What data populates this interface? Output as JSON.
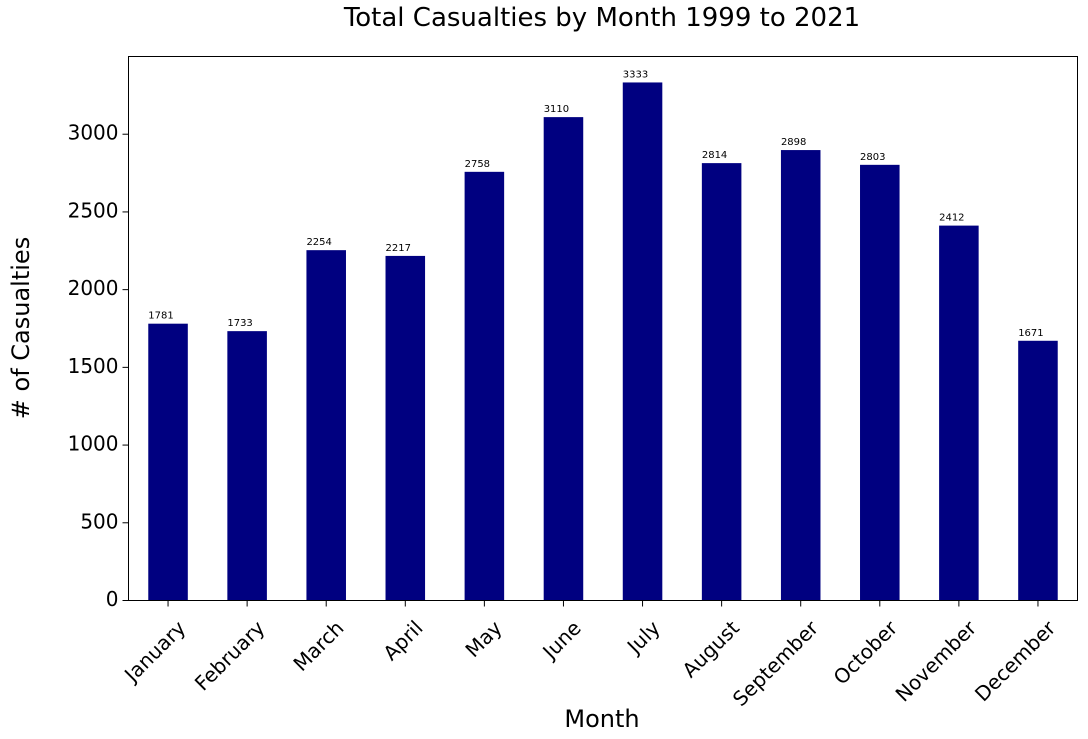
{
  "chart_data": {
    "type": "bar",
    "title": "Total Casualties by Month 1999 to 2021",
    "xlabel": "Month",
    "ylabel": "# of Casualties",
    "categories": [
      "January",
      "February",
      "March",
      "April",
      "May",
      "June",
      "July",
      "August",
      "September",
      "October",
      "November",
      "December"
    ],
    "values": [
      1781,
      1733,
      2254,
      2217,
      2758,
      3110,
      3333,
      2814,
      2898,
      2803,
      2412,
      1671
    ],
    "data_labels": [
      "1781",
      "1733",
      "2254",
      "2217",
      "2758",
      "3110",
      "3333",
      "2814",
      "2898",
      "2803",
      "2412",
      "1671"
    ],
    "ylim": [
      0,
      3500
    ],
    "yticks": [
      0,
      500,
      1000,
      1500,
      2000,
      2500,
      3000
    ],
    "ytick_labels": [
      "0",
      "500",
      "1000",
      "1500",
      "2000",
      "2500",
      "3000"
    ],
    "bar_color": "#000080",
    "grid": false,
    "legend": "none"
  }
}
